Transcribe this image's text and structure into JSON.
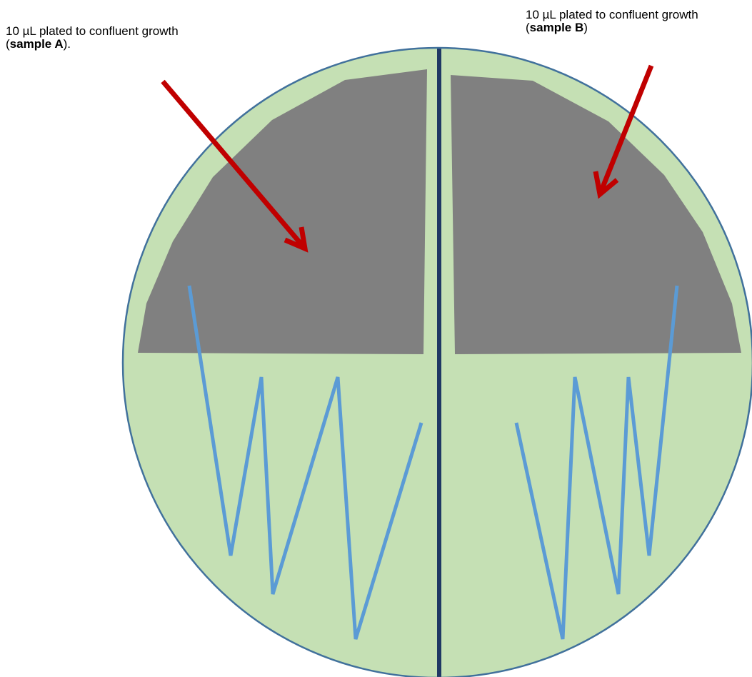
{
  "labels": {
    "sample_a": {
      "line1": "10 µL plated to confluent growth",
      "open": "(",
      "sample": "sample A",
      "close": ")."
    },
    "sample_b": {
      "line1": "10 µL plated to confluent growth",
      "open": "(",
      "sample": "sample B",
      "close": ")"
    }
  },
  "colors": {
    "agar": "#c5e0b4",
    "plate_rim": "#41719c",
    "divider": "#1f3864",
    "confluent_growth": "#808080",
    "streak": "#5b9bd5",
    "arrow": "#c00000"
  }
}
